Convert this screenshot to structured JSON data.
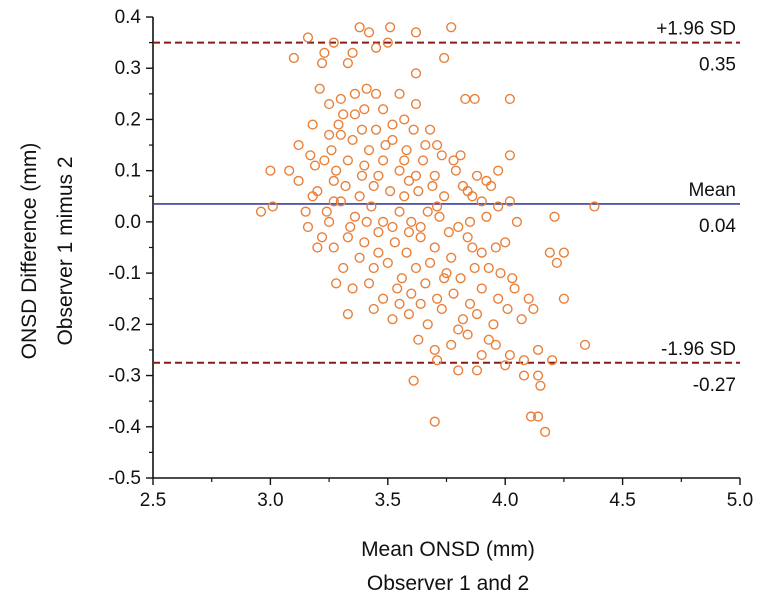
{
  "chart_data": {
    "type": "scatter",
    "title": "",
    "xlabel": [
      "Mean ONSD (mm)",
      "Observer 1 and 2"
    ],
    "ylabel": [
      "ONSD Difference (mm)",
      "Observer 1 mimus 2"
    ],
    "xlim": [
      2.5,
      5.0
    ],
    "ylim": [
      -0.5,
      0.4
    ],
    "xticks": [
      "2.5",
      "3.0",
      "3.5",
      "4.0",
      "4.5",
      "5.0"
    ],
    "yticks": [
      "0.4",
      "0.3",
      "0.2",
      "0.1",
      "0.0",
      "-0.1",
      "-0.2",
      "-0.3",
      "-0.4",
      "-0.5"
    ],
    "grid": false,
    "reference_lines": [
      {
        "label": "+1.96 SD",
        "value_label": "0.35",
        "y": 0.35,
        "color": "#8b1a1a",
        "style": "dashed"
      },
      {
        "label": "Mean",
        "value_label": "0.04",
        "y": 0.035,
        "color": "#3b3f9e",
        "style": "solid"
      },
      {
        "label": "-1.96 SD",
        "value_label": "-0.27",
        "y": -0.275,
        "color": "#8b1a1a",
        "style": "dashed"
      }
    ],
    "marker_color": "#e8803a",
    "points": [
      [
        3.16,
        0.36
      ],
      [
        3.23,
        0.33
      ],
      [
        3.27,
        0.35
      ],
      [
        3.38,
        0.38
      ],
      [
        3.42,
        0.37
      ],
      [
        3.51,
        0.38
      ],
      [
        3.5,
        0.35
      ],
      [
        3.62,
        0.37
      ],
      [
        3.77,
        0.38
      ],
      [
        3.35,
        0.33
      ],
      [
        3.45,
        0.34
      ],
      [
        3.1,
        0.32
      ],
      [
        3.22,
        0.31
      ],
      [
        3.33,
        0.31
      ],
      [
        3.74,
        0.32
      ],
      [
        3.62,
        0.29
      ],
      [
        3.41,
        0.26
      ],
      [
        3.45,
        0.25
      ],
      [
        3.36,
        0.25
      ],
      [
        3.3,
        0.24
      ],
      [
        3.21,
        0.26
      ],
      [
        3.25,
        0.23
      ],
      [
        3.31,
        0.21
      ],
      [
        3.4,
        0.22
      ],
      [
        3.55,
        0.25
      ],
      [
        3.62,
        0.23
      ],
      [
        3.83,
        0.24
      ],
      [
        3.87,
        0.24
      ],
      [
        4.02,
        0.24
      ],
      [
        3.18,
        0.19
      ],
      [
        3.29,
        0.19
      ],
      [
        3.36,
        0.21
      ],
      [
        3.45,
        0.18
      ],
      [
        3.52,
        0.19
      ],
      [
        3.61,
        0.18
      ],
      [
        3.68,
        0.18
      ],
      [
        3.71,
        0.15
      ],
      [
        3.65,
        0.12
      ],
      [
        3.58,
        0.14
      ],
      [
        3.49,
        0.15
      ],
      [
        3.42,
        0.14
      ],
      [
        3.35,
        0.16
      ],
      [
        3.25,
        0.17
      ],
      [
        3.17,
        0.13
      ],
      [
        3.23,
        0.12
      ],
      [
        3.28,
        0.1
      ],
      [
        3.33,
        0.12
      ],
      [
        3.4,
        0.11
      ],
      [
        3.48,
        0.12
      ],
      [
        3.55,
        0.1
      ],
      [
        3.62,
        0.09
      ],
      [
        3.7,
        0.09
      ],
      [
        3.78,
        0.12
      ],
      [
        3.81,
        0.13
      ],
      [
        3.79,
        0.1
      ],
      [
        3.88,
        0.09
      ],
      [
        3.92,
        0.08
      ],
      [
        3.97,
        0.1
      ],
      [
        4.02,
        0.13
      ],
      [
        3.0,
        0.1
      ],
      [
        3.08,
        0.1
      ],
      [
        3.12,
        0.08
      ],
      [
        3.2,
        0.06
      ],
      [
        3.27,
        0.08
      ],
      [
        3.32,
        0.07
      ],
      [
        3.38,
        0.05
      ],
      [
        3.44,
        0.07
      ],
      [
        3.51,
        0.06
      ],
      [
        3.57,
        0.05
      ],
      [
        3.63,
        0.06
      ],
      [
        3.69,
        0.07
      ],
      [
        3.74,
        0.05
      ],
      [
        3.82,
        0.07
      ],
      [
        3.86,
        0.05
      ],
      [
        3.9,
        0.04
      ],
      [
        3.97,
        0.03
      ],
      [
        4.02,
        0.04
      ],
      [
        3.01,
        0.03
      ],
      [
        2.96,
        0.02
      ],
      [
        3.15,
        0.02
      ],
      [
        3.24,
        0.02
      ],
      [
        3.3,
        0.04
      ],
      [
        3.36,
        0.01
      ],
      [
        3.43,
        0.03
      ],
      [
        3.48,
        0.0
      ],
      [
        3.55,
        0.02
      ],
      [
        3.6,
        0.0
      ],
      [
        3.67,
        0.02
      ],
      [
        3.72,
        0.01
      ],
      [
        3.8,
        -0.01
      ],
      [
        3.85,
        0.0
      ],
      [
        3.92,
        0.01
      ],
      [
        4.05,
        0.0
      ],
      [
        4.21,
        0.01
      ],
      [
        4.38,
        0.03
      ],
      [
        3.16,
        -0.01
      ],
      [
        3.22,
        -0.03
      ],
      [
        3.27,
        -0.05
      ],
      [
        3.33,
        -0.03
      ],
      [
        3.4,
        -0.04
      ],
      [
        3.46,
        -0.02
      ],
      [
        3.53,
        -0.04
      ],
      [
        3.58,
        -0.06
      ],
      [
        3.64,
        -0.03
      ],
      [
        3.7,
        -0.05
      ],
      [
        3.76,
        -0.02
      ],
      [
        3.84,
        -0.03
      ],
      [
        3.9,
        -0.06
      ],
      [
        3.96,
        -0.05
      ],
      [
        4.0,
        -0.04
      ],
      [
        4.19,
        -0.06
      ],
      [
        4.25,
        -0.06
      ],
      [
        3.2,
        -0.05
      ],
      [
        3.31,
        -0.09
      ],
      [
        3.38,
        -0.07
      ],
      [
        3.44,
        -0.09
      ],
      [
        3.5,
        -0.08
      ],
      [
        3.56,
        -0.11
      ],
      [
        3.62,
        -0.09
      ],
      [
        3.68,
        -0.08
      ],
      [
        3.75,
        -0.1
      ],
      [
        3.81,
        -0.11
      ],
      [
        3.87,
        -0.09
      ],
      [
        3.93,
        -0.09
      ],
      [
        3.98,
        -0.1
      ],
      [
        4.03,
        -0.11
      ],
      [
        4.22,
        -0.08
      ],
      [
        3.28,
        -0.12
      ],
      [
        3.35,
        -0.13
      ],
      [
        3.42,
        -0.12
      ],
      [
        3.48,
        -0.15
      ],
      [
        3.54,
        -0.13
      ],
      [
        3.6,
        -0.14
      ],
      [
        3.66,
        -0.12
      ],
      [
        3.71,
        -0.15
      ],
      [
        3.78,
        -0.14
      ],
      [
        3.85,
        -0.16
      ],
      [
        3.9,
        -0.13
      ],
      [
        3.97,
        -0.15
      ],
      [
        4.04,
        -0.13
      ],
      [
        4.1,
        -0.15
      ],
      [
        4.25,
        -0.15
      ],
      [
        3.33,
        -0.18
      ],
      [
        3.44,
        -0.17
      ],
      [
        3.52,
        -0.19
      ],
      [
        3.59,
        -0.18
      ],
      [
        3.67,
        -0.2
      ],
      [
        3.73,
        -0.17
      ],
      [
        3.8,
        -0.21
      ],
      [
        3.88,
        -0.18
      ],
      [
        3.95,
        -0.2
      ],
      [
        4.01,
        -0.17
      ],
      [
        4.07,
        -0.19
      ],
      [
        4.12,
        -0.17
      ],
      [
        3.63,
        -0.23
      ],
      [
        3.7,
        -0.25
      ],
      [
        3.77,
        -0.24
      ],
      [
        3.84,
        -0.22
      ],
      [
        3.9,
        -0.26
      ],
      [
        3.96,
        -0.24
      ],
      [
        4.02,
        -0.26
      ],
      [
        4.08,
        -0.27
      ],
      [
        4.14,
        -0.25
      ],
      [
        4.2,
        -0.27
      ],
      [
        3.71,
        -0.27
      ],
      [
        3.8,
        -0.29
      ],
      [
        3.88,
        -0.29
      ],
      [
        4.0,
        -0.28
      ],
      [
        4.08,
        -0.3
      ],
      [
        4.14,
        -0.3
      ],
      [
        4.34,
        -0.24
      ],
      [
        3.61,
        -0.31
      ],
      [
        4.15,
        -0.32
      ],
      [
        4.11,
        -0.38
      ],
      [
        4.14,
        -0.38
      ],
      [
        3.7,
        -0.39
      ],
      [
        4.17,
        -0.41
      ],
      [
        3.46,
        0.09
      ],
      [
        3.52,
        0.16
      ],
      [
        3.57,
        0.2
      ],
      [
        3.48,
        0.22
      ],
      [
        3.39,
        0.18
      ],
      [
        3.26,
        0.14
      ],
      [
        3.12,
        0.15
      ],
      [
        3.19,
        0.11
      ],
      [
        3.3,
        0.17
      ],
      [
        3.59,
        0.08
      ],
      [
        3.66,
        0.15
      ],
      [
        3.84,
        0.06
      ],
      [
        3.94,
        0.07
      ],
      [
        3.71,
        0.03
      ],
      [
        3.64,
        -0.01
      ],
      [
        3.52,
        -0.01
      ],
      [
        3.41,
        0.0
      ],
      [
        3.34,
        -0.01
      ],
      [
        3.25,
        0.0
      ],
      [
        3.18,
        0.05
      ],
      [
        3.46,
        -0.06
      ],
      [
        3.59,
        -0.02
      ],
      [
        3.77,
        -0.07
      ],
      [
        3.86,
        -0.05
      ],
      [
        3.74,
        -0.11
      ],
      [
        3.64,
        -0.16
      ],
      [
        3.55,
        -0.16
      ],
      [
        3.93,
        -0.23
      ],
      [
        3.82,
        -0.19
      ],
      [
        3.27,
        0.04
      ],
      [
        3.39,
        0.09
      ],
      [
        3.57,
        0.12
      ],
      [
        3.73,
        0.13
      ]
    ]
  }
}
